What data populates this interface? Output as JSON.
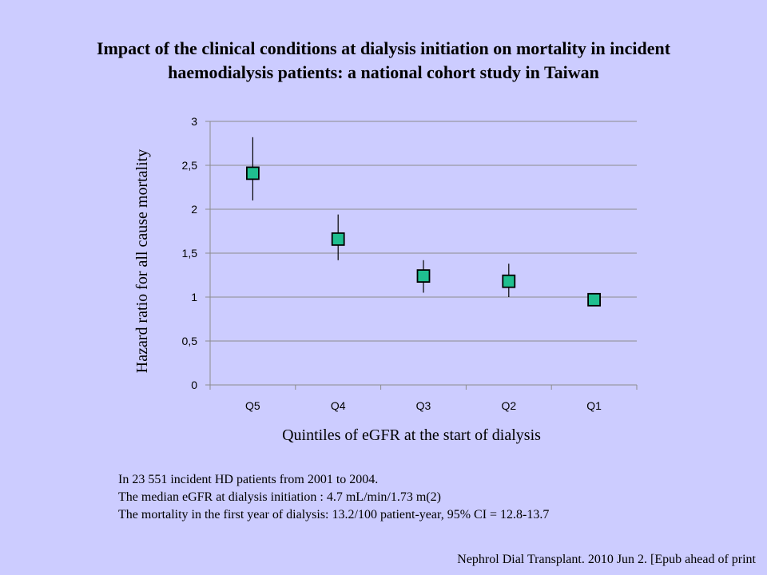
{
  "title_line1": "Impact of the clinical conditions at dialysis initiation on mortality in incident",
  "title_line2": "haemodialysis patients: a national cohort study in Taiwan",
  "chart_data": {
    "type": "scatter",
    "title": "Impact of the clinical conditions at dialysis initiation on mortality in incident haemodialysis patients: a national cohort study in Taiwan",
    "xlabel": "Quintiles of eGFR at the start of dialysis",
    "ylabel": "Hazard ratio for all cause mortality",
    "categories": [
      "Q5",
      "Q4",
      "Q3",
      "Q2",
      "Q1"
    ],
    "values": [
      2.41,
      1.66,
      1.24,
      1.18,
      0.97
    ],
    "ci_low": [
      2.1,
      1.42,
      1.05,
      1.0,
      null
    ],
    "ci_high": [
      2.82,
      1.94,
      1.42,
      1.38,
      null
    ],
    "ylim": [
      0,
      3
    ],
    "yticks": [
      0,
      0.5,
      1,
      1.5,
      2,
      2.5,
      3
    ],
    "ytick_labels": [
      "0",
      "0,5",
      "1",
      "1,5",
      "2",
      "2,5",
      "3"
    ],
    "grid": true,
    "marker_color": "#1fbf8f"
  },
  "notes": [
    "In 23 551 incident HD patients from 2001 to 2004.",
    "The median eGFR at dialysis initiation : 4.7 mL/min/1.73 m(2)",
    "The mortality in the first year of dialysis: 13.2/100 patient-year, 95% CI = 12.8-13.7"
  ],
  "citation": "Nephrol Dial Transplant. 2010 Jun 2. [Epub ahead of print"
}
